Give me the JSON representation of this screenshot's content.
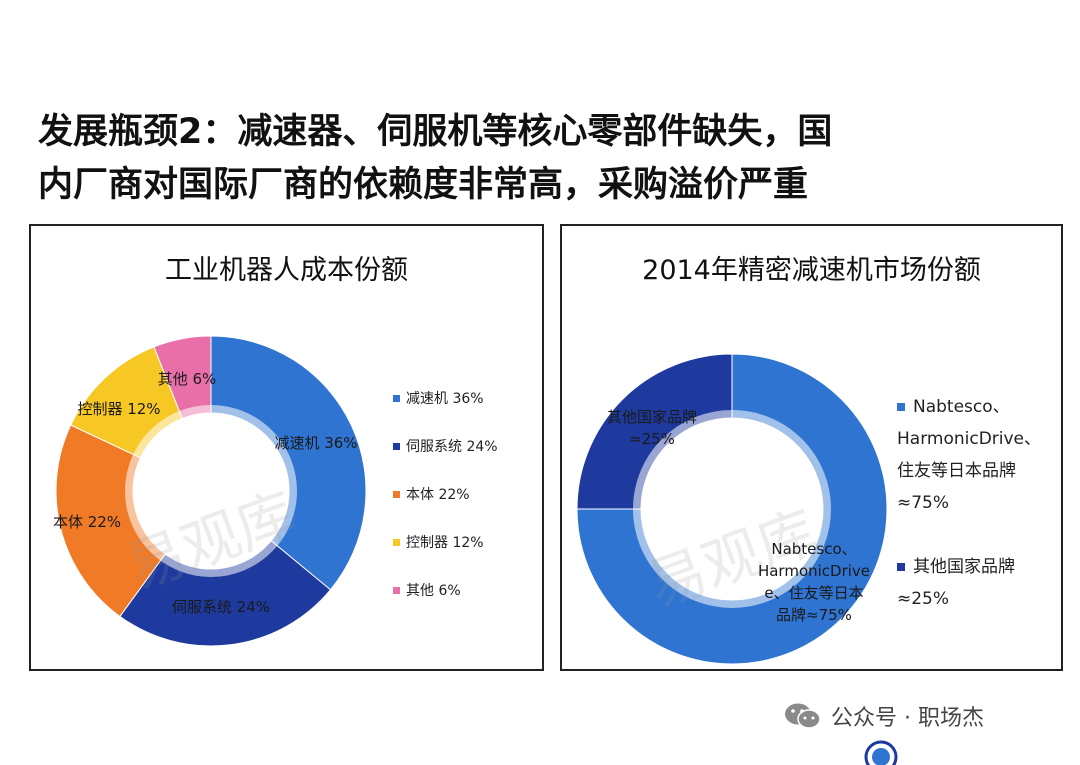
{
  "headline": {
    "line1": "发展瓶颈2：减速器、伺服机等核心零部件缺失，国",
    "line2": "内厂商对国际厂商的依赖度非常高，采购溢价严重"
  },
  "chart_data": [
    {
      "type": "pie",
      "variant": "donut",
      "title": "工业机器人成本份额",
      "categories": [
        "减速机",
        "伺服系统",
        "本体",
        "控制器",
        "其他"
      ],
      "values": [
        36,
        24,
        22,
        12,
        6
      ],
      "unit": "%",
      "colors": [
        "#2f74d1",
        "#1e3a9e",
        "#f07a26",
        "#f7c824",
        "#e86fa8"
      ],
      "labels": [
        "减速机 36%",
        "伺服系统 24%",
        "本体 22%",
        "控制器 12%",
        "其他 6%"
      ],
      "legend": [
        "减速机 36%",
        "伺服系统 24%",
        "本体 22%",
        "控制器 12%",
        "其他 6%"
      ],
      "legend_position": "right"
    },
    {
      "type": "pie",
      "variant": "donut",
      "title": "2014年精密减速机市场份额",
      "categories": [
        "Nabtesco、HarmonicDrive、住友等日本品牌",
        "其他国家品牌"
      ],
      "values": [
        75,
        25
      ],
      "unit": "%",
      "colors": [
        "#2f74d1",
        "#1e3a9e"
      ],
      "labels": [
        [
          "Nabtesco、",
          "HarmonicDrive",
          "e、住友等日本",
          "品牌≈75%"
        ],
        [
          "其他国家品牌",
          "≈25%"
        ]
      ],
      "legend": [
        "Nabtesco、HarmonicDrive、住友等日本品牌≈75%",
        "其他国家品牌≈25%"
      ],
      "legend_position": "right"
    }
  ],
  "footer": {
    "text": "公众号 · 职场杰"
  },
  "watermark": "易观库"
}
